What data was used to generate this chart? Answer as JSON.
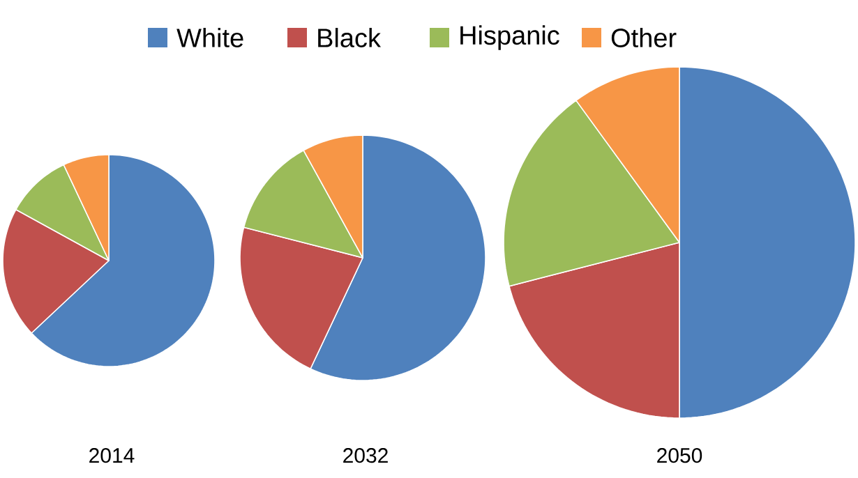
{
  "chart_data": {
    "type": "pie",
    "categories": [
      "White",
      "Black",
      "Hispanic",
      "Other"
    ],
    "colors": [
      "#4f81bd",
      "#c0504d",
      "#9bbb59",
      "#f79646"
    ],
    "legend": "top",
    "series": [
      {
        "name": "2014",
        "values": [
          63,
          20,
          10,
          7
        ]
      },
      {
        "name": "2032",
        "values": [
          57,
          22,
          13,
          8
        ]
      },
      {
        "name": "2050",
        "values": [
          50,
          21,
          19,
          10
        ]
      }
    ]
  }
}
